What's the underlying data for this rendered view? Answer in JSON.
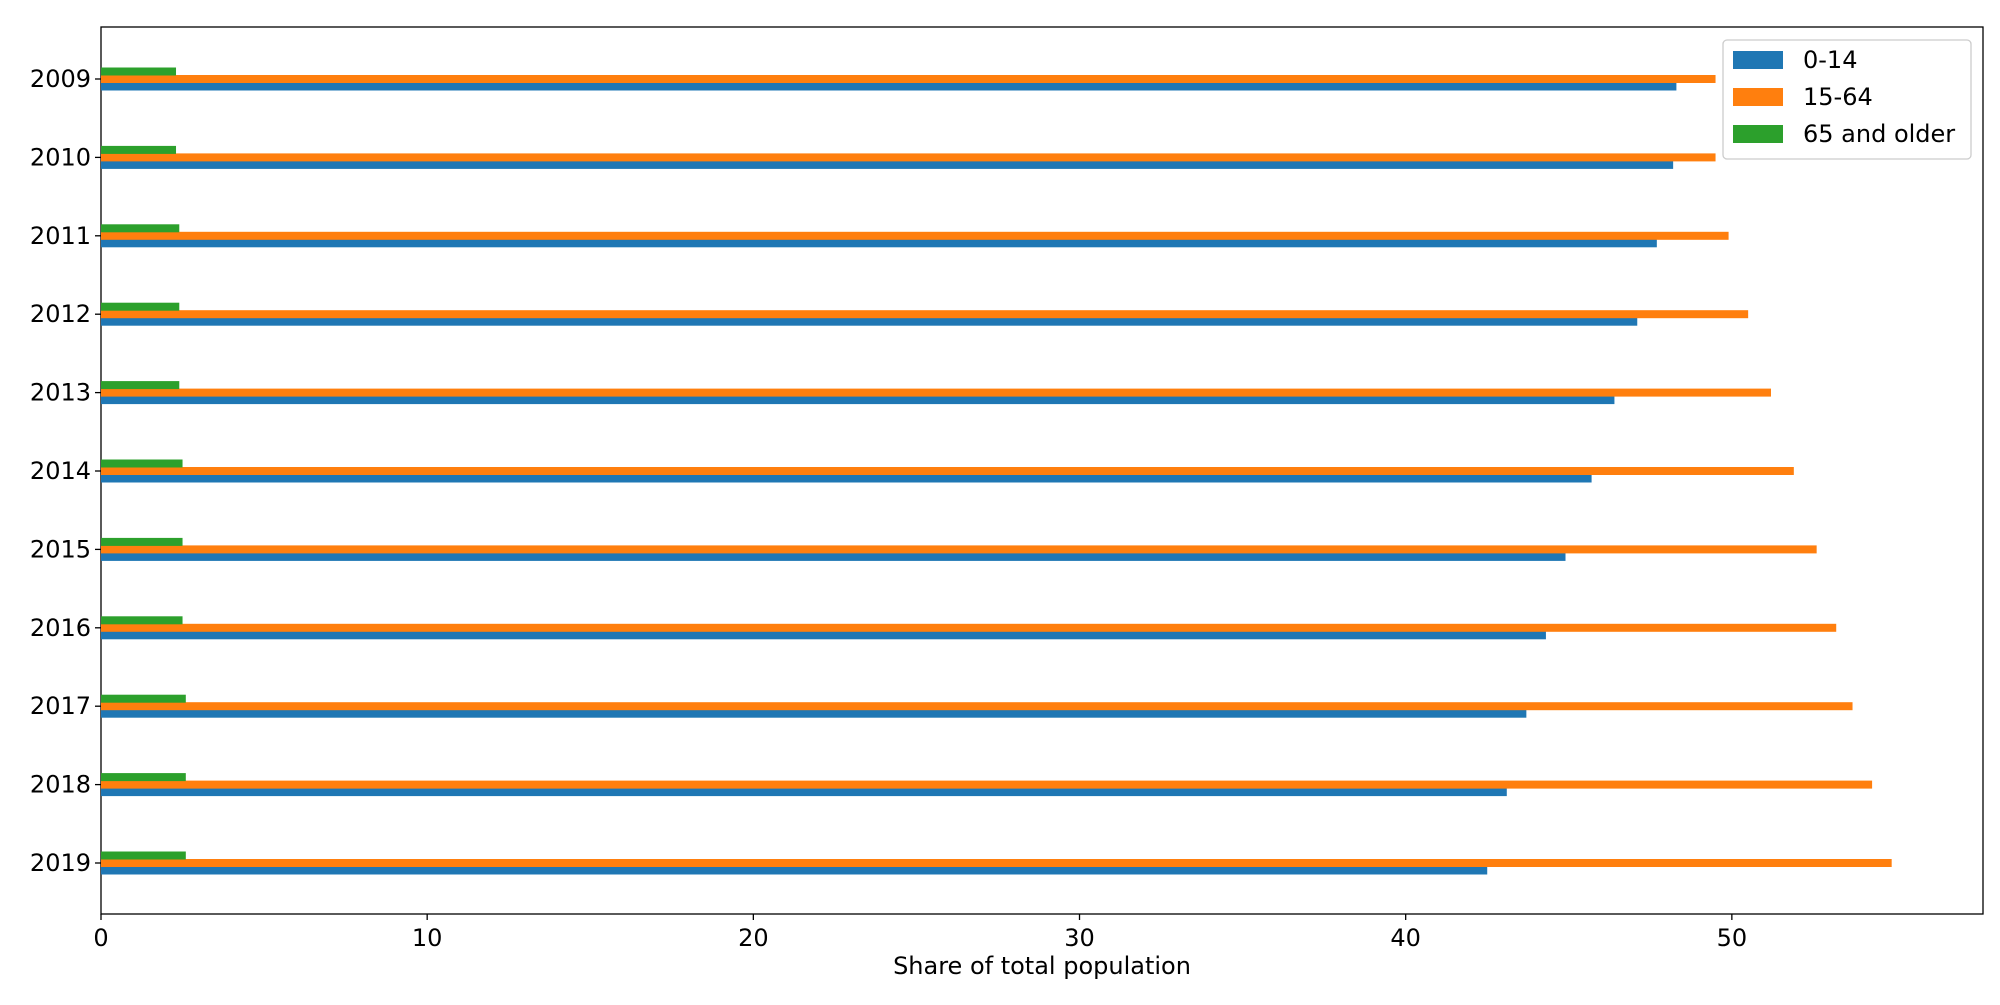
{
  "chart_data": {
    "type": "bar",
    "orientation": "horizontal",
    "categories": [
      "2009",
      "2010",
      "2011",
      "2012",
      "2013",
      "2014",
      "2015",
      "2016",
      "2017",
      "2018",
      "2019"
    ],
    "series": [
      {
        "name": "0-14",
        "color": "#1f77b4",
        "values": [
          48.3,
          48.2,
          47.7,
          47.1,
          46.4,
          45.7,
          44.9,
          44.3,
          43.7,
          43.1,
          42.5
        ]
      },
      {
        "name": "15-64",
        "color": "#ff7f0e",
        "values": [
          49.5,
          49.5,
          49.9,
          50.5,
          51.2,
          51.9,
          52.6,
          53.2,
          53.7,
          54.3,
          54.9
        ]
      },
      {
        "name": "65 and older",
        "color": "#2ca02c",
        "values": [
          2.3,
          2.3,
          2.4,
          2.4,
          2.4,
          2.5,
          2.5,
          2.5,
          2.6,
          2.6,
          2.6
        ]
      }
    ],
    "title": "",
    "xlabel": "Share of total population",
    "ylabel": "",
    "xlim": [
      0,
      57.7
    ],
    "xticks": [
      0,
      10,
      20,
      30,
      40,
      50
    ],
    "grid": false,
    "legend_position": "top-right"
  }
}
